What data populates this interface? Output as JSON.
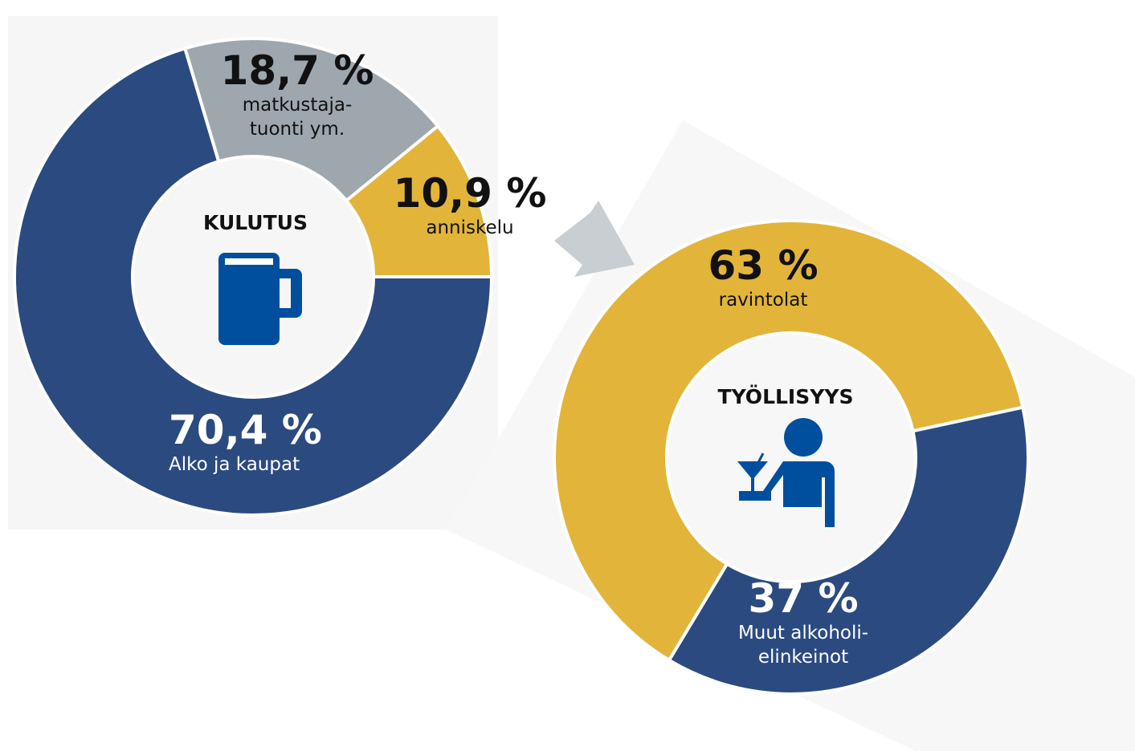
{
  "chart_data": [
    {
      "type": "donut",
      "center_label": "KULUTUS",
      "categories": [
        "Alko ja kaupat",
        "matkustaja-\ntuonti ym.",
        "anniskelu"
      ],
      "values": [
        70.4,
        18.7,
        10.9
      ],
      "value_labels": [
        "70,4 %",
        "18,7 %",
        "10,9 %"
      ],
      "colors": [
        "#2b4a80",
        "#9ea7ae",
        "#e2b43a"
      ]
    },
    {
      "type": "donut",
      "center_label": "TYÖLLISYYS",
      "categories": [
        "ravintolat",
        "Muut alkoholi-\nelinkeinot"
      ],
      "values": [
        63,
        37
      ],
      "value_labels": [
        "63 %",
        "37 %"
      ],
      "colors": [
        "#e2b43a",
        "#2b4a80"
      ]
    }
  ]
}
